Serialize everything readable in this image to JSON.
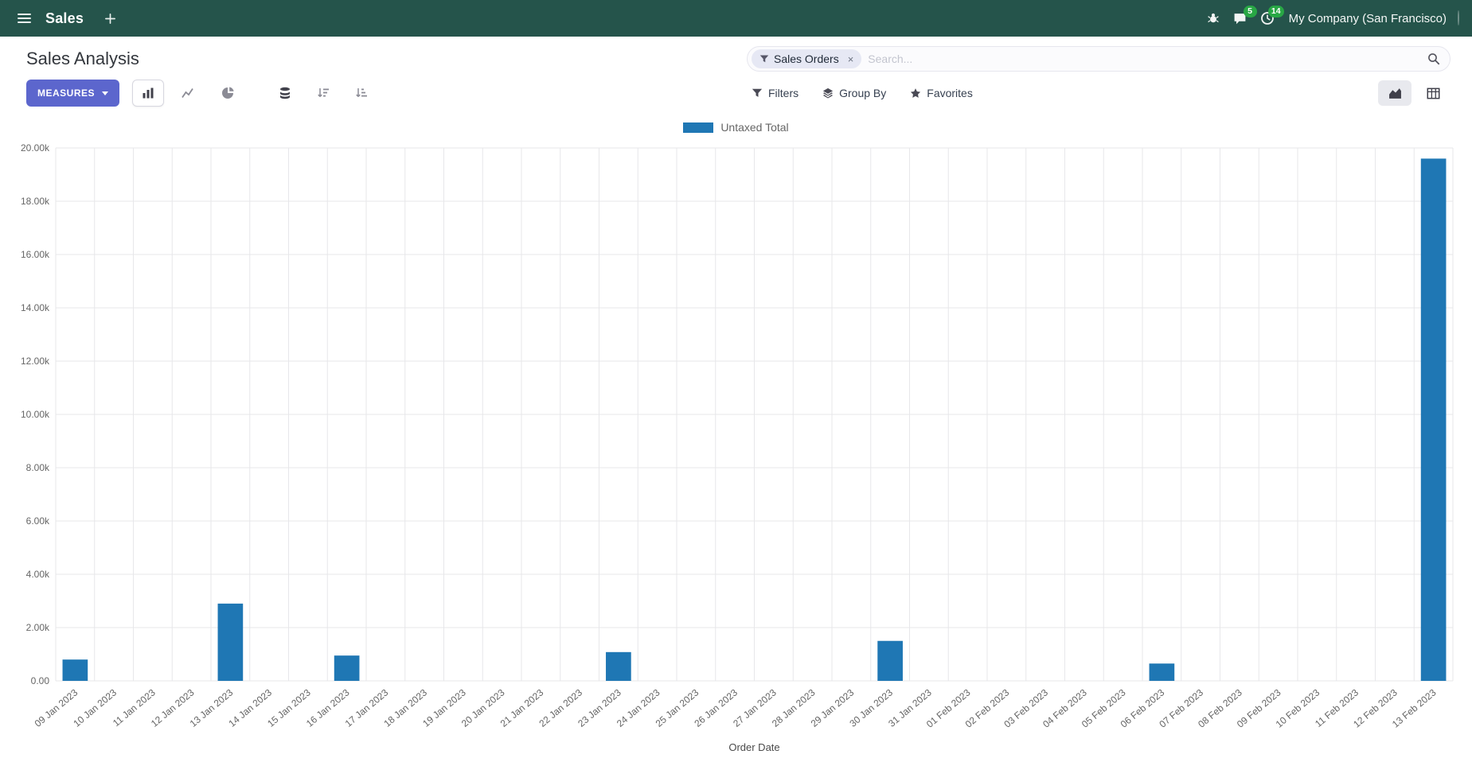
{
  "colors": {
    "primary_button": "#5c66cd",
    "badge": "#28a745",
    "bar": "#1f77b4"
  },
  "navbar": {
    "app_name": "Sales",
    "company": "My Company (San Francisco)",
    "messages_badge": "5",
    "activities_badge": "14"
  },
  "control_panel": {
    "title": "Sales Analysis",
    "measures_label": "MEASURES",
    "filters_label": "Filters",
    "group_by_label": "Group By",
    "favorites_label": "Favorites",
    "search": {
      "facet_label": "Sales Orders",
      "facet_remove": "×",
      "placeholder": "Search..."
    }
  },
  "chart_data": {
    "type": "bar",
    "title": "",
    "xlabel": "Order Date",
    "ylabel": "",
    "ylim": [
      0,
      20000
    ],
    "ytick_step": 2000,
    "ytick_labels": [
      "0.00",
      "2.00k",
      "4.00k",
      "6.00k",
      "8.00k",
      "10.00k",
      "12.00k",
      "14.00k",
      "16.00k",
      "18.00k",
      "20.00k"
    ],
    "legend_position": "top",
    "grid": true,
    "categories": [
      "09 Jan 2023",
      "10 Jan 2023",
      "11 Jan 2023",
      "12 Jan 2023",
      "13 Jan 2023",
      "14 Jan 2023",
      "15 Jan 2023",
      "16 Jan 2023",
      "17 Jan 2023",
      "18 Jan 2023",
      "19 Jan 2023",
      "20 Jan 2023",
      "21 Jan 2023",
      "22 Jan 2023",
      "23 Jan 2023",
      "24 Jan 2023",
      "25 Jan 2023",
      "26 Jan 2023",
      "27 Jan 2023",
      "28 Jan 2023",
      "29 Jan 2023",
      "30 Jan 2023",
      "31 Jan 2023",
      "01 Feb 2023",
      "02 Feb 2023",
      "03 Feb 2023",
      "04 Feb 2023",
      "05 Feb 2023",
      "06 Feb 2023",
      "07 Feb 2023",
      "08 Feb 2023",
      "09 Feb 2023",
      "10 Feb 2023",
      "11 Feb 2023",
      "12 Feb 2023",
      "13 Feb 2023"
    ],
    "series": [
      {
        "name": "Untaxed Total",
        "color": "#1f77b4",
        "values": [
          800,
          0,
          0,
          0,
          2900,
          0,
          0,
          950,
          0,
          0,
          0,
          0,
          0,
          0,
          1080,
          0,
          0,
          0,
          0,
          0,
          0,
          1500,
          0,
          0,
          0,
          0,
          0,
          0,
          650,
          0,
          0,
          0,
          0,
          0,
          0,
          19600
        ]
      }
    ]
  }
}
